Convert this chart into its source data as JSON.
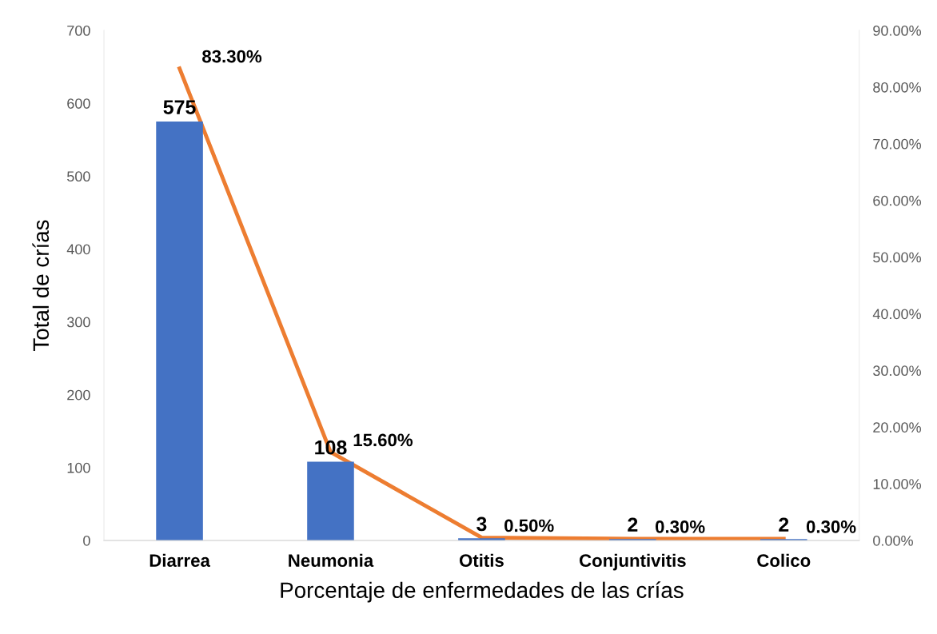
{
  "chart_data": {
    "type": "bar",
    "xlabel": "Porcentaje de enfermedades de las crías",
    "ylabel": "Total de crías",
    "categories": [
      "Diarrea",
      "Neumonia",
      "Otitis",
      "Conjuntivitis",
      "Colico"
    ],
    "series": [
      {
        "color": "#4472c4",
        "values": [
          575,
          108,
          3,
          2,
          2
        ],
        "data_labels": true
      },
      {
        "type": "line",
        "axis": "y2",
        "color": "#ed7d31",
        "values": [
          83.3,
          15.6,
          0.5,
          0.3,
          0.3
        ],
        "value_labels": [
          "83.30%",
          "15.60%",
          "0.50%",
          "0.30%",
          "0.30%"
        ],
        "marker": "none",
        "line_style": "solid"
      }
    ],
    "ylim": [
      0,
      700
    ],
    "yticks": [
      0,
      100,
      200,
      300,
      400,
      500,
      600,
      700
    ],
    "y2lim": [
      0,
      90
    ],
    "y2ticks": [
      {
        "value": 0,
        "label": "0.00%"
      },
      {
        "value": 10,
        "label": "10.00%"
      },
      {
        "value": 20,
        "label": "20.00%"
      },
      {
        "value": 30,
        "label": "30.00%"
      },
      {
        "value": 40,
        "label": "40.00%"
      },
      {
        "value": 50,
        "label": "50.00%"
      },
      {
        "value": 60,
        "label": "60.00%"
      },
      {
        "value": 70,
        "label": "70.00%"
      },
      {
        "value": 80,
        "label": "80.00%"
      },
      {
        "value": 90,
        "label": "90.00%"
      }
    ],
    "grid": false,
    "legend": false
  }
}
